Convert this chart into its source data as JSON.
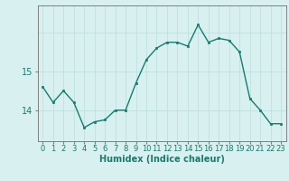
{
  "x": [
    0,
    1,
    2,
    3,
    4,
    5,
    6,
    7,
    8,
    9,
    10,
    11,
    12,
    13,
    14,
    15,
    16,
    17,
    18,
    19,
    20,
    21,
    22,
    23
  ],
  "y": [
    14.6,
    14.2,
    14.5,
    14.2,
    13.55,
    13.7,
    13.75,
    14.0,
    14.0,
    14.7,
    15.3,
    15.6,
    15.75,
    15.75,
    15.65,
    16.2,
    15.75,
    15.85,
    15.8,
    15.5,
    14.3,
    14.0,
    13.65,
    13.65
  ],
  "line_color": "#1a7a6e",
  "marker_color": "#1a7a6e",
  "bg_color": "#d8f0f0",
  "grid_color": "#c0e0e0",
  "xlabel": "Humidex (Indice chaleur)",
  "yticks": [
    14,
    15
  ],
  "ylim": [
    13.2,
    16.7
  ],
  "xlim": [
    -0.5,
    23.5
  ],
  "xlabel_fontsize": 7,
  "tick_fontsize": 6,
  "line_width": 1.0,
  "marker_size": 2
}
